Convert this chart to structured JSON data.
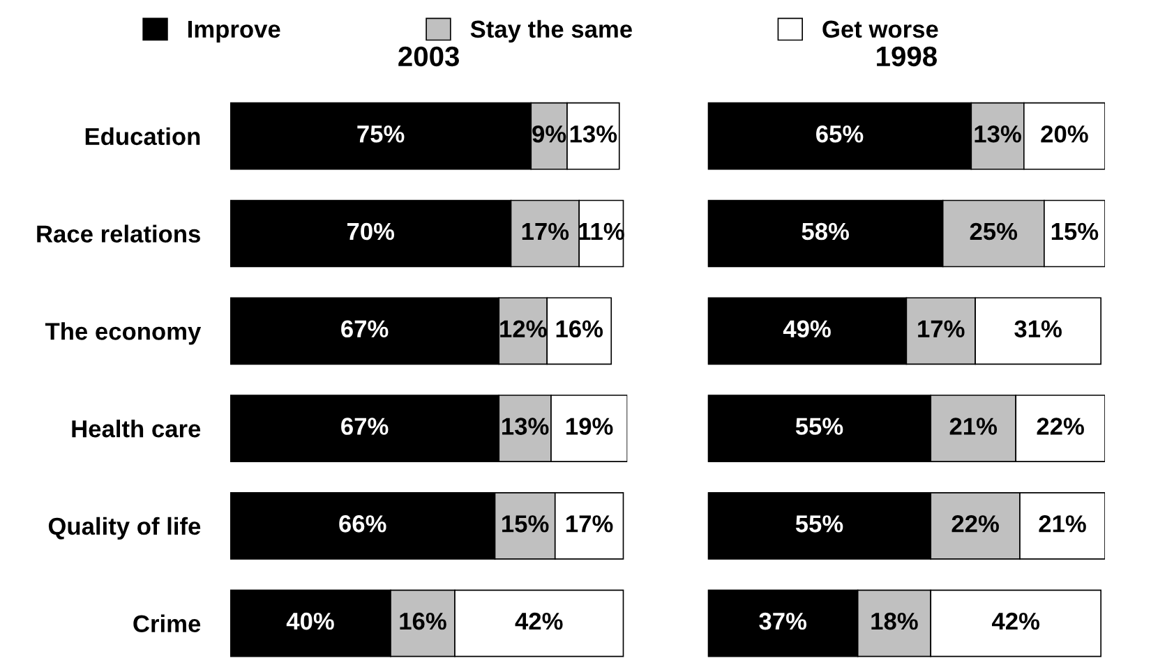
{
  "chart_data": [
    {
      "type": "bar",
      "orientation": "horizontal",
      "stacked": true,
      "title": "2003",
      "legend": "top",
      "tick_labels": "y",
      "categories": [
        "Education",
        "Race relations",
        "The economy",
        "Health care",
        "Quality of life",
        "Crime"
      ],
      "series": [
        {
          "name": "Improve",
          "color": "#000000",
          "values": [
            75,
            70,
            67,
            67,
            66,
            40
          ],
          "value_labels": [
            "75%",
            "70%",
            "67%",
            "67%",
            "66%",
            "40%"
          ]
        },
        {
          "name": "Stay the same",
          "color": "#c0c0c0",
          "values": [
            9,
            17,
            12,
            13,
            15,
            16
          ],
          "value_labels": [
            "9%",
            "17%",
            "12%",
            "13%",
            "15%",
            "16%"
          ]
        },
        {
          "name": "Get worse",
          "color": "#ffffff",
          "values": [
            13,
            11,
            16,
            19,
            17,
            42
          ],
          "value_labels": [
            "13%",
            "11%",
            "16%",
            "19%",
            "17%",
            "42%"
          ]
        }
      ]
    },
    {
      "type": "bar",
      "orientation": "horizontal",
      "stacked": true,
      "title": "1998",
      "tick_labels": false,
      "categories": [
        null,
        null,
        null,
        null,
        null,
        null
      ],
      "series": [
        {
          "color": "#000000",
          "values": [
            65,
            58,
            49,
            55,
            55,
            37
          ],
          "value_labels": [
            "65%",
            "58%",
            "49%",
            "55%",
            "55%",
            "37%"
          ]
        },
        {
          "color": "#c0c0c0",
          "values": [
            13,
            25,
            17,
            21,
            22,
            18
          ],
          "value_labels": [
            "13%",
            "25%",
            "17%",
            "21%",
            "22%",
            "18%"
          ]
        },
        {
          "color": "#ffffff",
          "values": [
            20,
            15,
            31,
            22,
            21,
            42
          ],
          "value_labels": [
            "20%",
            "15%",
            "31%",
            "22%",
            "21%",
            "42%"
          ]
        }
      ]
    }
  ]
}
